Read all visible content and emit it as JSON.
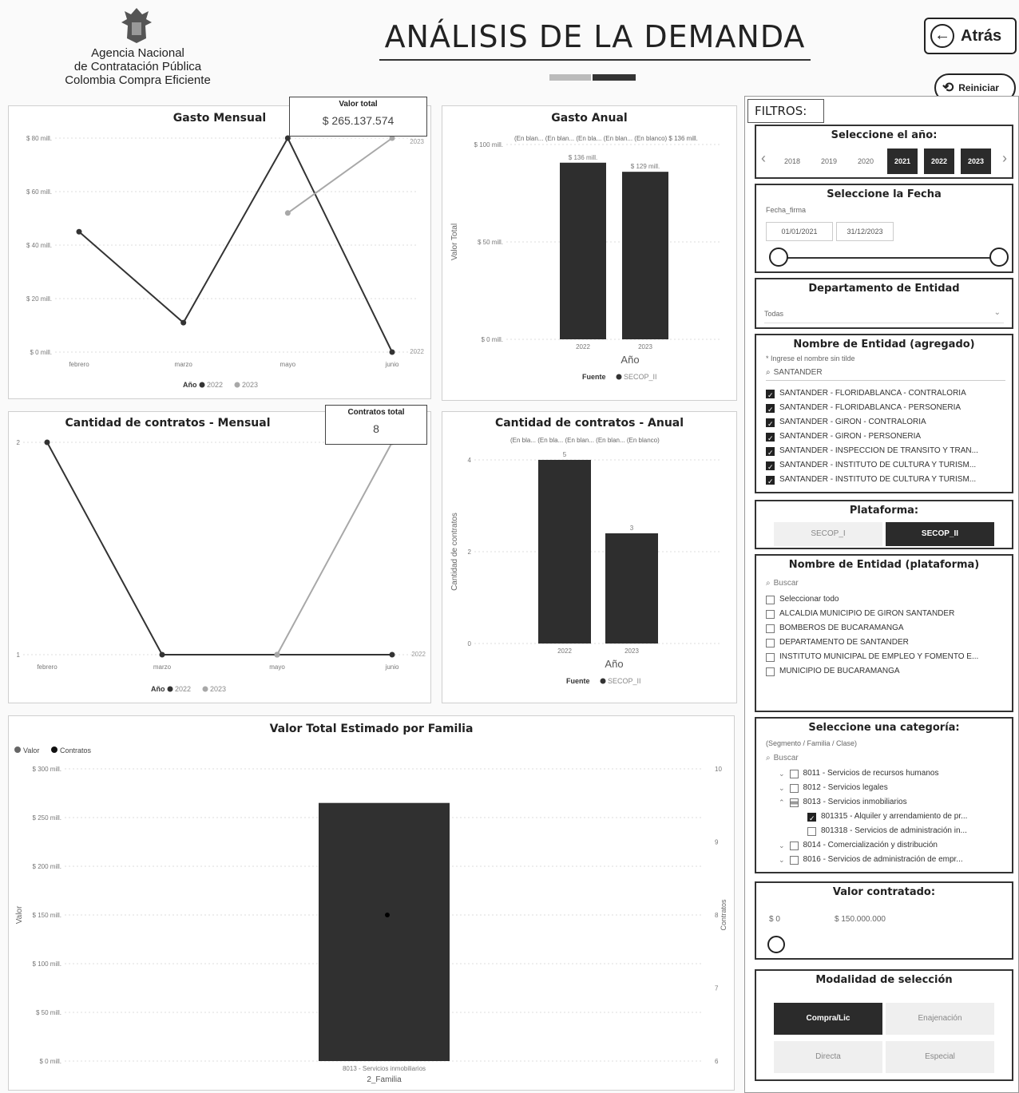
{
  "header": {
    "org_line1": "Agencia Nacional",
    "org_line2": "de Contratación Pública",
    "org_line3": "Colombia Compra Eficiente",
    "title": "ANÁLISIS DE LA DEMANDA",
    "back_label": "Atrás",
    "reset_label": "Reiniciar"
  },
  "cards": {
    "valor_total_label": "Valor total",
    "valor_total_value": "$ 265.137.574",
    "contratos_total_label": "Contratos total",
    "contratos_total_value": "8"
  },
  "colors": {
    "dark": "#333333",
    "light": "#a8a8a8"
  },
  "chart_data": [
    {
      "id": "gasto_mensual",
      "type": "line",
      "title": "Gasto Mensual",
      "categories": [
        "febrero",
        "marzo",
        "mayo",
        "junio"
      ],
      "y_ticks": [
        "$ 0 mill.",
        "$ 20 mill.",
        "$ 40 mill.",
        "$ 60 mill.",
        "$ 80 mill."
      ],
      "ylim": [
        0,
        80
      ],
      "legend_title": "Año",
      "series": [
        {
          "name": "2022",
          "values": [
            45,
            11,
            80,
            0
          ]
        },
        {
          "name": "2023",
          "values": [
            null,
            null,
            52,
            80
          ]
        }
      ],
      "end_labels": [
        "2023",
        "2022"
      ]
    },
    {
      "id": "gasto_anual",
      "type": "bar",
      "title": "Gasto Anual",
      "subtitle": "(En blan... (En blan... (En bla... (En blan... (En blanco) $ 136 mill.",
      "categories": [
        "2022",
        "2023"
      ],
      "values": [
        136,
        129
      ],
      "data_labels": [
        "$ 136 mill.",
        "$ 129 mill."
      ],
      "y_ticks": [
        "$ 0 mill.",
        "$ 50 mill.",
        "$ 100 mill."
      ],
      "ylim": [
        0,
        150
      ],
      "xlabel": "Año",
      "ylabel": "Valor Total",
      "legend_title": "Fuente",
      "legend_item": "SECOP_II"
    },
    {
      "id": "contratos_mensual",
      "type": "line",
      "title": "Cantidad de contratos - Mensual",
      "categories": [
        "febrero",
        "marzo",
        "mayo",
        "junio"
      ],
      "y_ticks": [
        "1",
        "2"
      ],
      "ylim": [
        1,
        2
      ],
      "legend_title": "Año",
      "series": [
        {
          "name": "2022",
          "values": [
            2,
            1,
            1,
            1
          ]
        },
        {
          "name": "2023",
          "values": [
            null,
            null,
            1,
            2
          ]
        }
      ],
      "end_labels": [
        "2022"
      ]
    },
    {
      "id": "contratos_anual",
      "type": "bar",
      "title": "Cantidad de contratos - Anual",
      "subtitle": "(En bla... (En bla... (En blan... (En blan... (En blanco)",
      "categories": [
        "2022",
        "2023"
      ],
      "values": [
        5,
        3
      ],
      "data_labels": [
        "5",
        "3"
      ],
      "y_ticks": [
        "0",
        "2",
        "4"
      ],
      "ylim": [
        0,
        5
      ],
      "xlabel": "Año",
      "ylabel": "Cantidad de contratos",
      "legend_title": "Fuente",
      "legend_item": "SECOP_II"
    },
    {
      "id": "valor_por_familia",
      "type": "bar",
      "title": "Valor Total Estimado por Familia",
      "legend": [
        "Valor",
        "Contratos"
      ],
      "categories": [
        "8013 - Servicios inmobiliarios"
      ],
      "values": [
        265
      ],
      "contratos": [
        8
      ],
      "y_ticks": [
        "$ 0 mill.",
        "$ 50 mill.",
        "$ 100 mill.",
        "$ 150 mill.",
        "$ 200 mill.",
        "$ 250 mill.",
        "$ 300 mill."
      ],
      "y2_ticks": [
        "6",
        "7",
        "8",
        "9",
        "10"
      ],
      "ylim": [
        0,
        300
      ],
      "xlabel": "2_Familia",
      "ylabel": "Valor",
      "y2label": "Contratos"
    }
  ],
  "filters": {
    "heading": "FILTROS:",
    "year": {
      "title": "Seleccione el año:",
      "years": [
        "2018",
        "2019",
        "2020",
        "2021",
        "2022",
        "2023"
      ],
      "selected": [
        "2021",
        "2022",
        "2023"
      ]
    },
    "date": {
      "title": "Seleccione la Fecha",
      "field_label": "Fecha_firma",
      "from": "01/01/2021",
      "to": "31/12/2023"
    },
    "department": {
      "title": "Departamento de Entidad",
      "value": "Todas"
    },
    "entity_aggregate": {
      "title": "Nombre de Entidad (agregado)",
      "hint": "* Ingrese el nombre sin tilde",
      "search": "SANTANDER",
      "items": [
        "SANTANDER - FLORIDABLANCA - CONTRALORIA",
        "SANTANDER - FLORIDABLANCA - PERSONERIA",
        "SANTANDER - GIRON - CONTRALORIA",
        "SANTANDER - GIRON - PERSONERIA",
        "SANTANDER - INSPECCION DE TRANSITO Y TRAN...",
        "SANTANDER - INSTITUTO DE CULTURA Y TURISM...",
        "SANTANDER - INSTITUTO DE CULTURA Y TURISM..."
      ]
    },
    "platform": {
      "title": "Plataforma:",
      "options": [
        "SECOP_I",
        "SECOP_II"
      ],
      "selected": "SECOP_II"
    },
    "entity_platform": {
      "title": "Nombre de Entidad (plataforma)",
      "search_placeholder": "Buscar",
      "select_all": "Seleccionar todo",
      "items": [
        "ALCALDIA MUNICIPIO DE GIRON SANTANDER",
        "BOMBEROS DE BUCARAMANGA",
        "DEPARTAMENTO DE SANTANDER",
        "INSTITUTO MUNICIPAL DE EMPLEO Y FOMENTO E...",
        "MUNICIPIO DE BUCARAMANGA"
      ]
    },
    "category": {
      "title": "Seleccione una categoría:",
      "subtitle": "(Segmento / Familia / Clase)",
      "search_placeholder": "Buscar",
      "items": [
        {
          "label": "8011 - Servicios de recursos humanos",
          "level": 1,
          "state": "off"
        },
        {
          "label": "8012 - Servicios legales",
          "level": 1,
          "state": "off"
        },
        {
          "label": "8013 - Servicios inmobiliarios",
          "level": 1,
          "state": "partial"
        },
        {
          "label": "801315 - Alquiler y arrendamiento de pr...",
          "level": 2,
          "state": "on"
        },
        {
          "label": "801318 - Servicios de administración in...",
          "level": 2,
          "state": "off"
        },
        {
          "label": "8014 - Comercialización y distribución",
          "level": 1,
          "state": "off"
        },
        {
          "label": "8016 - Servicios de administración de empr...",
          "level": 1,
          "state": "off"
        }
      ]
    },
    "amount": {
      "title": "Valor contratado:",
      "min": "$ 0",
      "max": "$ 150.000.000"
    },
    "modality": {
      "title": "Modalidad de selección",
      "options": [
        "Compra/Lic",
        "Enajenación",
        "Directa",
        "Especial"
      ],
      "selected": "Compra/Lic"
    }
  }
}
